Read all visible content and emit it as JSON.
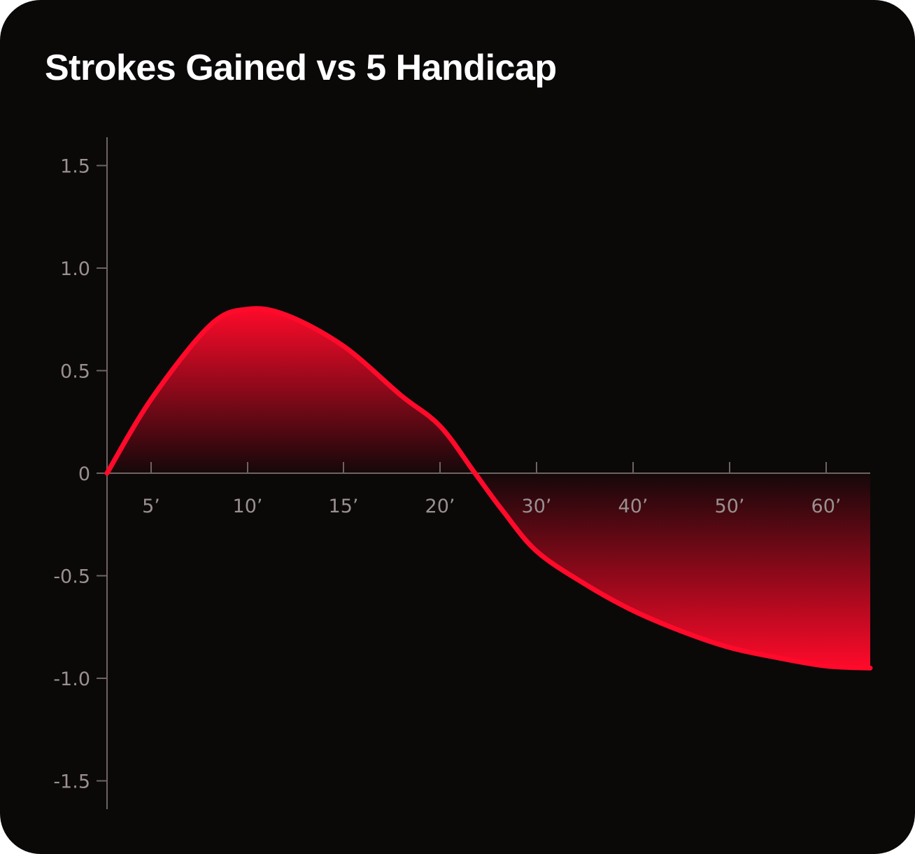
{
  "title": "Strokes Gained vs 5 Handicap",
  "colors": {
    "background": "#0b0808",
    "axis": "#6e6363",
    "tick_label": "#9a9090",
    "line": "#ff0a2a"
  },
  "chart_data": {
    "type": "area",
    "title": "Strokes Gained vs 5 Handicap",
    "xlabel": "",
    "ylabel": "",
    "x_ticks": [
      "5’",
      "10’",
      "15’",
      "20’",
      "30’",
      "40’",
      "50’",
      "60’"
    ],
    "y_ticks": [
      "1.5",
      "1.0",
      "0.5",
      "0",
      "-0.5",
      "-1.0",
      "-1.5"
    ],
    "ylim": [
      -1.6,
      1.6
    ],
    "grid": false,
    "series": [
      {
        "x": [
          "3’",
          "5’",
          "8’",
          "10’",
          "12’",
          "15’",
          "18’",
          "20’",
          "22’",
          "25’",
          "30’",
          "35’",
          "40’",
          "45’",
          "50’",
          "55’",
          "60’",
          "65’"
        ],
        "values": [
          0.0,
          0.36,
          0.72,
          0.8,
          0.77,
          0.62,
          0.38,
          0.23,
          0.0,
          -0.18,
          -0.38,
          -0.54,
          -0.67,
          -0.77,
          -0.85,
          -0.9,
          -0.94,
          -0.95
        ]
      }
    ]
  }
}
